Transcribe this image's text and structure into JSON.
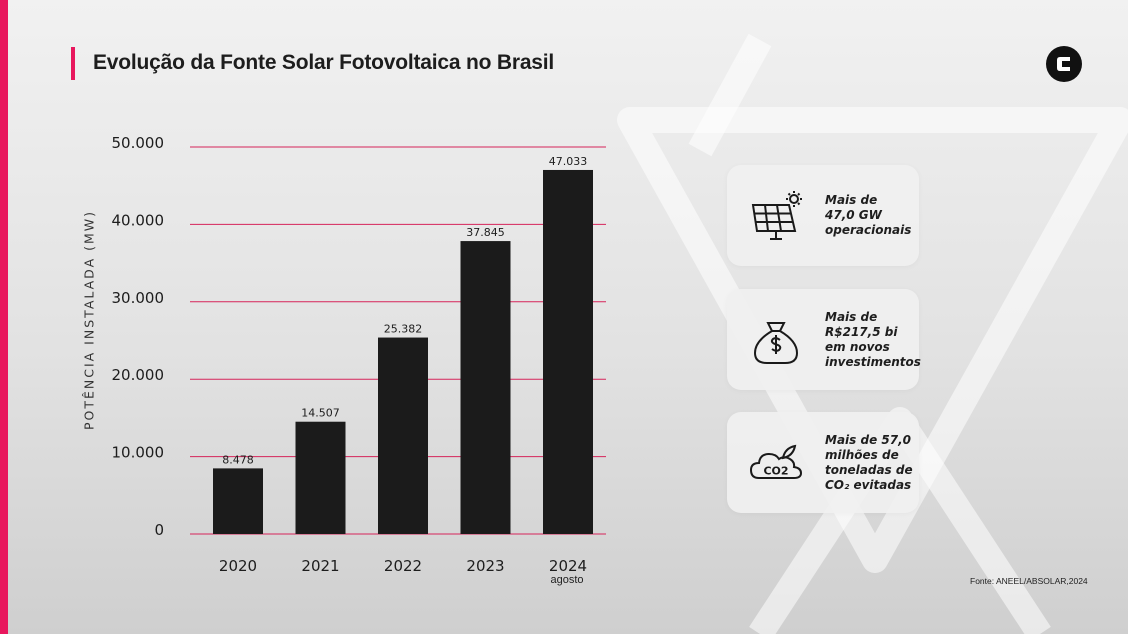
{
  "title": "Evolução da Fonte Solar Fotovoltaica no Brasil",
  "logo_icon": "brand-c-logo-icon",
  "colors": {
    "accent": "#e8175d",
    "bar": "#1b1b1b",
    "gridline": "#d6245a"
  },
  "chart_data": {
    "type": "bar",
    "title": "",
    "xlabel": "",
    "ylabel": "POTÊNCIA INSTALADA (MW)",
    "categories": [
      "2020",
      "2021",
      "2022",
      "2023",
      "2024"
    ],
    "category_notes": [
      "",
      "",
      "",
      "",
      "agosto"
    ],
    "values": [
      8478,
      14507,
      25382,
      37845,
      47033
    ],
    "value_labels": [
      "8.478",
      "14.507",
      "25.382",
      "37.845",
      "47.033"
    ],
    "ylim": [
      0,
      50000
    ],
    "yticks": [
      0,
      10000,
      20000,
      30000,
      40000,
      50000
    ],
    "ytick_labels": [
      "0",
      "10.000",
      "20.000",
      "30.000",
      "40.000",
      "50.000"
    ],
    "grid": true
  },
  "cards": [
    {
      "icon": "solar-panel-icon",
      "lines": [
        "Mais de",
        "47,0 GW",
        "operacionais"
      ]
    },
    {
      "icon": "money-bag-icon",
      "lines": [
        "Mais de",
        "R$217,5 bi",
        "em novos",
        "investimentos"
      ]
    },
    {
      "icon": "co2-cloud-icon",
      "lines": [
        "Mais de 57,0",
        "milhões de",
        "toneladas de",
        "CO₂ evitadas"
      ]
    }
  ],
  "source": "Fonte: ANEEL/ABSOLAR,2024"
}
